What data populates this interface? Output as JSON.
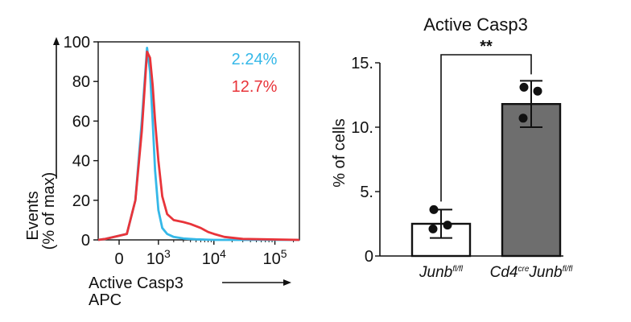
{
  "chart_data": [
    {
      "type": "histogram",
      "title": "",
      "ylabel_line1": "Events",
      "ylabel_line2": "(% of max)",
      "xlabel_line1": "Active Casp3",
      "xlabel_line2": "APC",
      "ylim": [
        0,
        100
      ],
      "yticks": [
        {
          "value": 0,
          "label": "0"
        },
        {
          "value": 20,
          "label": "20"
        },
        {
          "value": 40,
          "label": "40"
        },
        {
          "value": 60,
          "label": "60"
        },
        {
          "value": 80,
          "label": "80"
        },
        {
          "value": 100,
          "label": "100"
        }
      ],
      "xticks": [
        {
          "value": 0,
          "base": "0",
          "exp": ""
        },
        {
          "value": 1000,
          "base": "10",
          "exp": "3"
        },
        {
          "value": 10000,
          "base": "10",
          "exp": "4"
        },
        {
          "value": 100000,
          "base": "10",
          "exp": "5"
        }
      ],
      "xlim": [
        -500,
        250000
      ],
      "gate_percent_blue": "2.24%",
      "gate_percent_red": "12.7%",
      "series": [
        {
          "color": "#35b8e8",
          "x": [
            -500,
            -200,
            100,
            250,
            400,
            550,
            650,
            750,
            850,
            1000,
            1200,
            1500,
            2000,
            3000,
            5000,
            10000,
            50000,
            250000
          ],
          "y": [
            0,
            0.5,
            3,
            20,
            60,
            97,
            85,
            60,
            35,
            15,
            6,
            3,
            1.5,
            0.7,
            0.3,
            0,
            0,
            0
          ]
        },
        {
          "color": "#e8343a",
          "x": [
            -500,
            -200,
            100,
            250,
            400,
            550,
            650,
            750,
            850,
            1000,
            1200,
            1500,
            2000,
            3000,
            4000,
            6000,
            8000,
            10000,
            15000,
            30000,
            250000
          ],
          "y": [
            0,
            0.5,
            3,
            20,
            55,
            95,
            92,
            78,
            60,
            40,
            22,
            13,
            10,
            9,
            8,
            6,
            4,
            3,
            1.5,
            0.5,
            0
          ]
        }
      ]
    },
    {
      "type": "bar",
      "title": "Active Casp3",
      "ylabel": "% of cells",
      "ylim": [
        0,
        15
      ],
      "yticks": [
        {
          "value": 0,
          "label": "0"
        },
        {
          "value": 5,
          "label": "5."
        },
        {
          "value": 10,
          "label": "10."
        },
        {
          "value": 15,
          "label": "15."
        }
      ],
      "significance": "**",
      "categories": [
        {
          "main": "Junb",
          "sup": "fl/fl",
          "prefix": "",
          "prefix_sup": ""
        },
        {
          "main": "Junb",
          "sup": "fl/fl",
          "prefix": "Cd4",
          "prefix_sup": "cre"
        }
      ],
      "values": [
        2.5,
        11.8
      ],
      "errors": [
        1.1,
        1.8
      ],
      "colors": [
        "#ffffff",
        "#6e6e6e"
      ],
      "points": [
        [
          3.6,
          2.4,
          2.1
        ],
        [
          13.1,
          12.8,
          10.7
        ]
      ]
    }
  ]
}
